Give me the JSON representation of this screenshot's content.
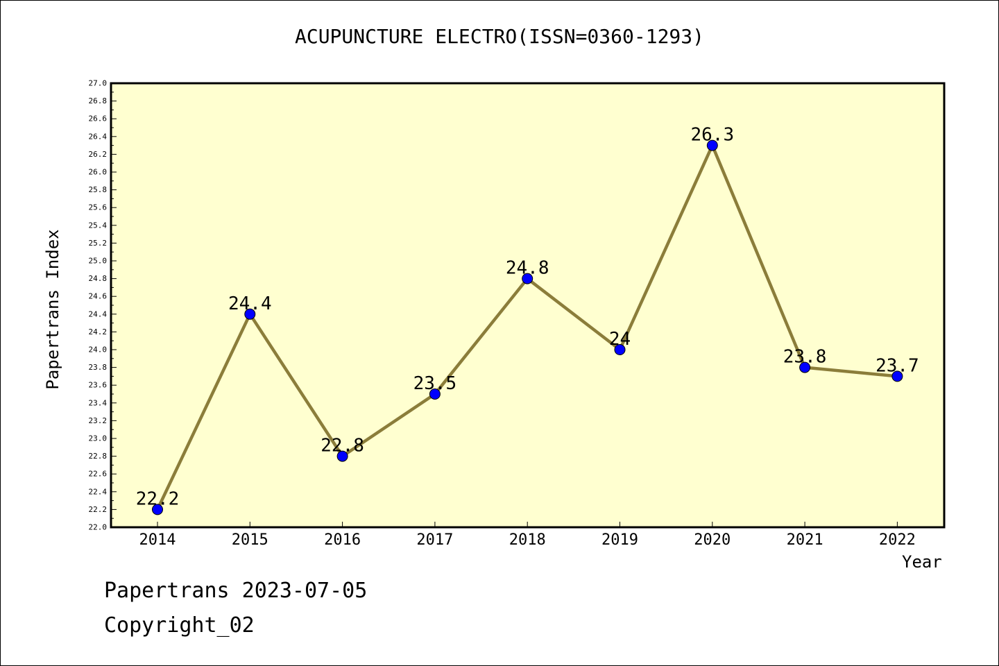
{
  "chart_data": {
    "type": "line",
    "title": "ACUPUNCTURE ELECTRO(ISSN=0360-1293)",
    "xlabel": "Year",
    "ylabel": "Papertrans Index",
    "categories": [
      "2014",
      "2015",
      "2016",
      "2017",
      "2018",
      "2019",
      "2020",
      "2021",
      "2022"
    ],
    "series": [
      {
        "values": [
          22.2,
          24.4,
          22.8,
          23.5,
          24.8,
          24.0,
          26.3,
          23.8,
          23.7
        ],
        "data_labels": [
          "22.2",
          "24.4",
          "22.8",
          "23.5",
          "24.8",
          "24",
          "26.3",
          "23.8",
          "23.7"
        ]
      }
    ],
    "ylim": [
      22.0,
      27.0
    ],
    "yticks": [
      "22.0",
      "22.2",
      "22.4",
      "22.6",
      "22.8",
      "23.0",
      "23.2",
      "23.4",
      "23.6",
      "23.8",
      "24.0",
      "24.2",
      "24.4",
      "24.6",
      "24.8",
      "25.0",
      "25.2",
      "25.4",
      "25.6",
      "25.8",
      "26.0",
      "26.2",
      "26.4",
      "26.6",
      "26.8",
      "27.0"
    ],
    "grid": false,
    "legend": "none"
  },
  "footer": {
    "line1": "Papertrans 2023-07-05",
    "line2": "Copyright_02"
  },
  "colors": {
    "plot_background": "#ffffd0",
    "line": "#8b7d3a",
    "marker": "#0000ff"
  }
}
